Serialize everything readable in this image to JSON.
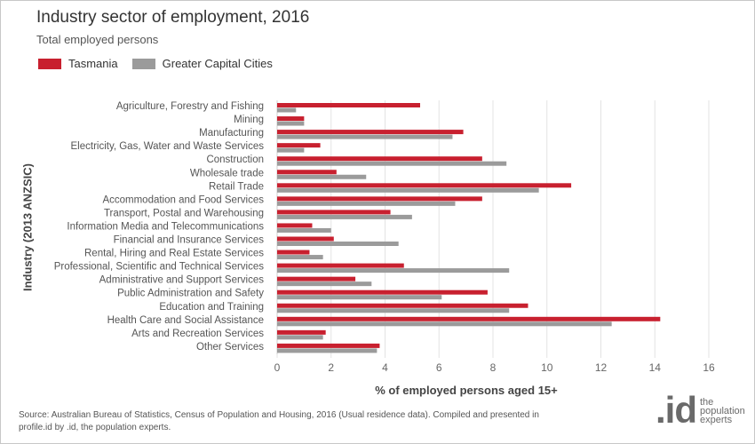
{
  "title": "Industry sector of employment, 2016",
  "subtitle": "Total employed persons",
  "legend": {
    "series1": "Tasmania",
    "series2": "Greater Capital Cities"
  },
  "colors": {
    "tasmania": "#c8202f",
    "capital": "#9b9b9b",
    "grid": "#e3e3e3"
  },
  "source": "Source: Australian Bureau of Statistics, Census of Population and Housing, 2016 (Usual residence data). Compiled and presented in profile.id by .id, the population experts.",
  "logo": {
    "mark": ".id",
    "line1": "the",
    "line2": "population",
    "line3": "experts"
  },
  "chart_data": {
    "type": "bar",
    "orientation": "horizontal",
    "xlabel": "% of employed persons aged 15+",
    "ylabel": "Industry (2013 ANZSIC)",
    "xlim": [
      0,
      16
    ],
    "xticks": [
      0,
      2,
      4,
      6,
      8,
      10,
      12,
      14,
      16
    ],
    "grid": "vertical",
    "legend_position": "top-left",
    "categories": [
      "Agriculture, Forestry and Fishing",
      "Mining",
      "Manufacturing",
      "Electricity, Gas, Water and Waste Services",
      "Construction",
      "Wholesale trade",
      "Retail Trade",
      "Accommodation and Food Services",
      "Transport, Postal and Warehousing",
      "Information Media and Telecommunications",
      "Financial and Insurance Services",
      "Rental, Hiring and Real Estate Services",
      "Professional, Scientific and Technical Services",
      "Administrative and Support Services",
      "Public Administration and Safety",
      "Education and Training",
      "Health Care and Social Assistance",
      "Arts and Recreation Services",
      "Other Services"
    ],
    "series": [
      {
        "name": "Tasmania",
        "values": [
          5.3,
          1.0,
          6.9,
          1.6,
          7.6,
          2.2,
          10.9,
          7.6,
          4.2,
          1.3,
          2.1,
          1.2,
          4.7,
          2.9,
          7.8,
          9.3,
          14.2,
          1.8,
          3.8
        ]
      },
      {
        "name": "Greater Capital Cities",
        "values": [
          0.7,
          1.0,
          6.5,
          1.0,
          8.5,
          3.3,
          9.7,
          6.6,
          5.0,
          2.0,
          4.5,
          1.7,
          8.6,
          3.5,
          6.1,
          8.6,
          12.4,
          1.7,
          3.7
        ]
      }
    ]
  }
}
